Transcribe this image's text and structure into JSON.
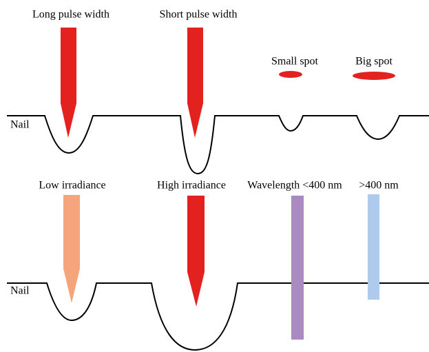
{
  "top": {
    "long_pulse_label": "Long pulse width",
    "short_pulse_label": "Short pulse width",
    "small_spot_label": "Small spot",
    "big_spot_label": "Big spot",
    "nail_label": "Nail"
  },
  "bottom": {
    "low_irradiance_label": "Low irradiance",
    "high_irradiance_label": "High irradiance",
    "short_wavelength_label": "Wavelength <400 nm",
    "long_wavelength_label": ">400 nm",
    "nail_label": "Nail"
  }
}
